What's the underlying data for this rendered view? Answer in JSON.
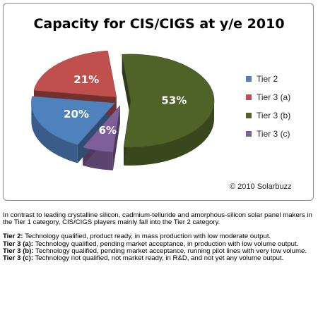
{
  "chart_data": {
    "type": "pie",
    "title": "Capacity for CIS/CIGS at y/e 2010",
    "categories": [
      "Tier 2",
      "Tier 3 (a)",
      "Tier 3 (b)",
      "Tier 3 (c)"
    ],
    "values": [
      20,
      21,
      53,
      6
    ],
    "data_labels": [
      "20%",
      "21%",
      "53%",
      "6%"
    ],
    "colors": [
      "#4f81bd",
      "#c0504d",
      "#4f6228",
      "#7f5f99"
    ],
    "legend_position": "right",
    "style": "3d exploded"
  },
  "credit": "© 2010 Solarbuzz",
  "intro_text": "In contrast to leading crystalline silicon, cadmium-telluride and amorphous-silicon solar panel makers in the Tier 1 category, CIS/CIGS players mainly fall into the Tier 2 category.",
  "tiers": [
    {
      "label": "Tier 2:",
      "text": " Technology qualified, product ready, in mass production with low moderate output."
    },
    {
      "label": "Tier 3 (a):",
      "text": " Technology qualified, pending market acceptance, in production with  low volume output."
    },
    {
      "label": "Tier 3 (b):",
      "text": " Technology qualified, pending market acceptance, running pilot lines with very low volume."
    },
    {
      "label": "Tier 3 (c):",
      "text": " Technology not qualified, not market ready, in R&D, and not yet any volume output."
    }
  ]
}
